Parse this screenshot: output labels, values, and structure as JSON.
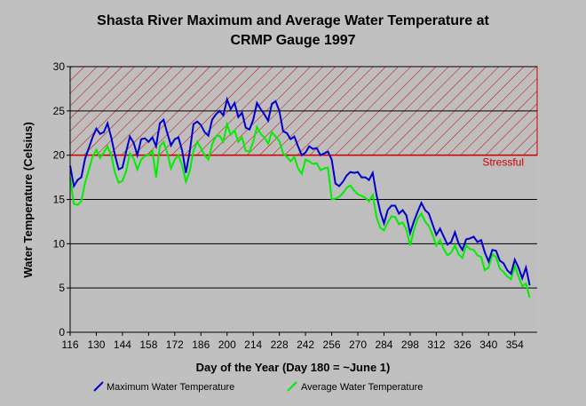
{
  "chart_data": {
    "type": "line",
    "title_line1": "Shasta River Maximum and Average Water Temperature at",
    "title_line2": "CRMP Gauge 1997",
    "xlabel": "Day of the Year (Day 180 = ~June 1)",
    "ylabel": "Water Temperature (Celsius)",
    "xlim": [
      116,
      366
    ],
    "ylim": [
      0,
      30
    ],
    "xticks": [
      116,
      130,
      144,
      158,
      172,
      186,
      200,
      214,
      228,
      242,
      256,
      270,
      284,
      298,
      312,
      326,
      340,
      354
    ],
    "yticks": [
      0,
      5,
      10,
      15,
      20,
      25,
      30
    ],
    "grid": "horizontal",
    "legend_position": "bottom",
    "band": {
      "label": "Stressful",
      "from": 20,
      "to": 30,
      "color": "#cc0000"
    },
    "colors": {
      "max": "#0000cc",
      "avg": "#00ee00",
      "band": "#cc0000",
      "background": "#c0c0c0",
      "plot": "#bebebe"
    },
    "series": [
      {
        "name": "Maximum Water Temperature",
        "key": "max",
        "x": [
          116,
          118,
          120,
          122,
          124,
          126,
          128,
          130,
          132,
          134,
          136,
          138,
          140,
          142,
          144,
          146,
          148,
          150,
          152,
          154,
          156,
          158,
          160,
          162,
          164,
          166,
          168,
          170,
          172,
          174,
          176,
          178,
          180,
          182,
          184,
          186,
          188,
          190,
          192,
          194,
          196,
          198,
          200,
          202,
          204,
          206,
          208,
          210,
          212,
          214,
          216,
          218,
          220,
          222,
          224,
          226,
          228,
          230,
          232,
          234,
          236,
          238,
          240,
          242,
          244,
          246,
          248,
          250,
          252,
          254,
          256,
          258,
          260,
          262,
          264,
          266,
          268,
          270,
          272,
          274,
          276,
          278,
          280,
          282,
          284,
          286,
          288,
          290,
          292,
          294,
          296,
          298,
          300,
          302,
          304,
          306,
          308,
          310,
          312,
          314,
          316,
          318,
          320,
          322,
          324,
          326,
          328,
          330,
          332,
          334,
          336,
          338,
          340,
          342,
          344,
          346,
          348,
          350,
          352,
          354,
          356,
          358,
          360,
          362
        ],
        "values": [
          18.8,
          16.5,
          17.2,
          17.5,
          19.6,
          20.8,
          22.0,
          23.0,
          22.4,
          22.6,
          23.6,
          22.0,
          20.0,
          18.4,
          18.6,
          20.4,
          22.1,
          21.4,
          20.0,
          21.8,
          21.9,
          21.5,
          22.0,
          21.0,
          23.6,
          24.0,
          22.5,
          21.1,
          21.8,
          22.0,
          20.5,
          18.0,
          20.4,
          23.5,
          23.8,
          23.4,
          22.6,
          22.2,
          24.0,
          24.6,
          25.0,
          24.5,
          26.3,
          25.2,
          25.9,
          24.3,
          24.8,
          23.1,
          22.9,
          24.0,
          25.9,
          25.2,
          24.6,
          23.9,
          25.8,
          26.1,
          25.0,
          22.7,
          22.5,
          21.8,
          22.1,
          21.0,
          20.0,
          20.3,
          21.0,
          20.7,
          20.8,
          20.0,
          20.2,
          20.4,
          19.5,
          16.8,
          16.5,
          17.0,
          17.7,
          18.1,
          18.0,
          18.1,
          17.5,
          17.5,
          17.2,
          18.0,
          15.5,
          13.6,
          12.3,
          13.8,
          14.3,
          14.3,
          13.4,
          13.8,
          13.2,
          11.2,
          12.5,
          13.6,
          14.6,
          13.8,
          13.4,
          12.2,
          11.0,
          11.7,
          10.8,
          9.9,
          10.2,
          11.3,
          10.0,
          9.3,
          10.5,
          10.6,
          10.8,
          10.2,
          10.4,
          9.0,
          8.0,
          9.3,
          9.2,
          8.1,
          7.8,
          7.0,
          6.6,
          8.2,
          7.3,
          6.1,
          7.3,
          5.3
        ]
      },
      {
        "name": "Average Water Temperature",
        "key": "avg",
        "x": [
          116,
          118,
          120,
          122,
          124,
          126,
          128,
          130,
          132,
          134,
          136,
          138,
          140,
          142,
          144,
          146,
          148,
          150,
          152,
          154,
          156,
          158,
          160,
          162,
          164,
          166,
          168,
          170,
          172,
          174,
          176,
          178,
          180,
          182,
          184,
          186,
          188,
          190,
          192,
          194,
          196,
          198,
          200,
          202,
          204,
          206,
          208,
          210,
          212,
          214,
          216,
          218,
          220,
          222,
          224,
          226,
          228,
          230,
          232,
          234,
          236,
          238,
          240,
          242,
          244,
          246,
          248,
          250,
          252,
          254,
          256,
          258,
          260,
          262,
          264,
          266,
          268,
          270,
          272,
          274,
          276,
          278,
          280,
          282,
          284,
          286,
          288,
          290,
          292,
          294,
          296,
          298,
          300,
          302,
          304,
          306,
          308,
          310,
          312,
          314,
          316,
          318,
          320,
          322,
          324,
          326,
          328,
          330,
          332,
          334,
          336,
          338,
          340,
          342,
          344,
          346,
          348,
          350,
          352,
          354,
          356,
          358,
          360,
          362
        ],
        "values": [
          17.5,
          14.5,
          14.4,
          14.8,
          16.9,
          18.3,
          19.8,
          20.6,
          19.7,
          20.3,
          21.0,
          20.0,
          18.0,
          16.9,
          17.1,
          18.2,
          20.2,
          19.6,
          18.4,
          19.5,
          19.9,
          20.0,
          20.5,
          17.5,
          21.0,
          21.5,
          20.3,
          18.5,
          19.5,
          20.0,
          18.8,
          17.0,
          18.2,
          20.5,
          21.5,
          20.8,
          20.0,
          19.5,
          21.2,
          22.1,
          22.2,
          21.5,
          23.5,
          22.3,
          22.8,
          21.5,
          22.0,
          20.5,
          20.4,
          21.5,
          23.2,
          22.4,
          22.0,
          21.3,
          22.6,
          22.1,
          21.6,
          20.2,
          19.8,
          19.3,
          19.8,
          18.5,
          17.9,
          19.5,
          19.3,
          19.0,
          19.1,
          18.3,
          18.5,
          18.6,
          15.0,
          15.1,
          15.3,
          15.7,
          16.3,
          16.6,
          16.0,
          15.6,
          15.4,
          15.2,
          14.8,
          15.5,
          13.0,
          11.8,
          11.5,
          12.4,
          13.1,
          13.0,
          12.2,
          12.4,
          11.6,
          9.8,
          11.5,
          12.8,
          13.4,
          12.5,
          12.0,
          11.0,
          9.8,
          10.4,
          9.4,
          8.7,
          9.0,
          9.8,
          8.8,
          8.4,
          9.8,
          9.4,
          9.3,
          8.7,
          8.5,
          7.0,
          7.3,
          8.8,
          8.5,
          7.2,
          6.8,
          6.3,
          6.0,
          7.5,
          6.3,
          5.2,
          5.5,
          3.9
        ]
      }
    ]
  }
}
